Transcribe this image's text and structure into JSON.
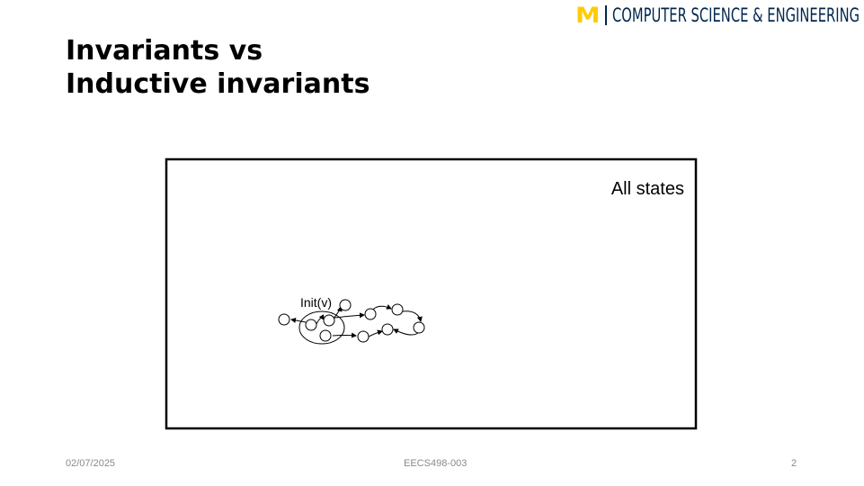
{
  "header": {
    "logo_mark": "M",
    "logo_text": "COMPUTER SCIENCE & ENGINEERING",
    "logo_color": "#FFCB05",
    "brand_color": "#00274C"
  },
  "slide": {
    "title_line1": "Invariants vs",
    "title_line2": "Inductive invariants"
  },
  "diagram": {
    "region_label": "All states",
    "init_label": "Init(v)"
  },
  "footer": {
    "date": "02/07/2025",
    "course": "EECS498-003",
    "page": "2"
  }
}
